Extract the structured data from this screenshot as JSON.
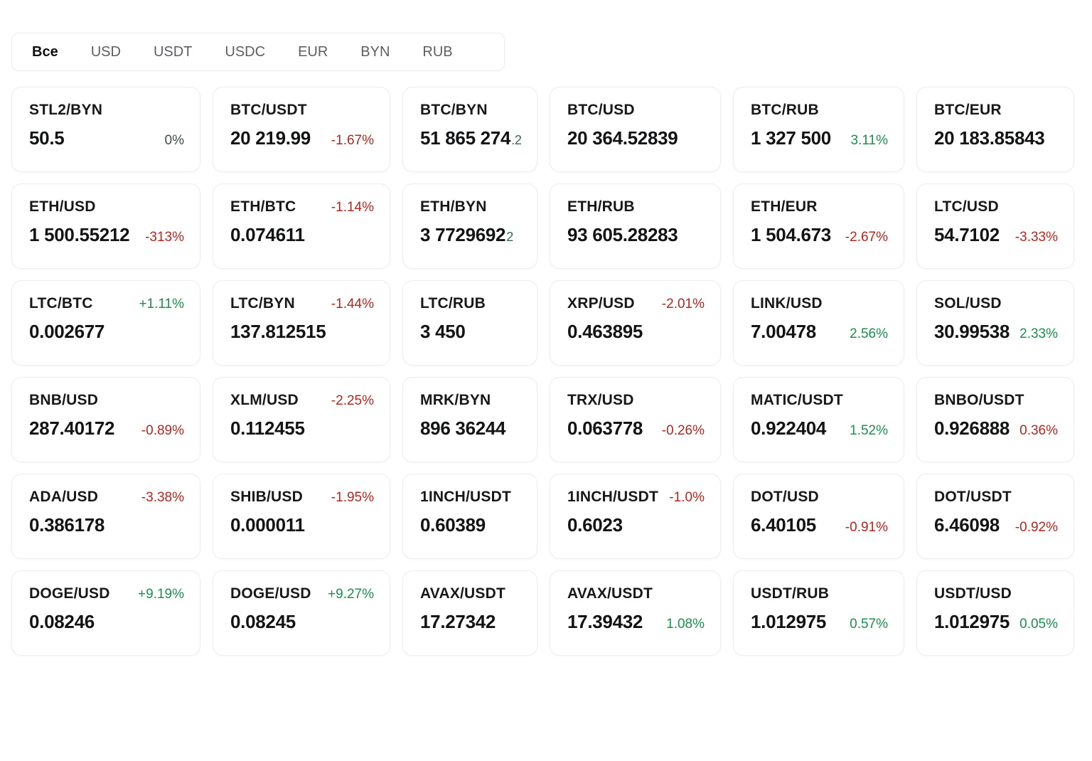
{
  "colors": {
    "positive": "#17914c",
    "negative": "#b3261e",
    "neutral": "#3d4f49",
    "price_suffix": "#2f6e55"
  },
  "tabs": [
    {
      "id": "all",
      "label": "Все",
      "active": true
    },
    {
      "id": "usd",
      "label": "USD",
      "active": false
    },
    {
      "id": "usdt",
      "label": "USDT",
      "active": false
    },
    {
      "id": "usdc",
      "label": "USDC",
      "active": false
    },
    {
      "id": "eur",
      "label": "EUR",
      "active": false
    },
    {
      "id": "byn",
      "label": "BYN",
      "active": false
    },
    {
      "id": "rub",
      "label": "RUB",
      "active": false
    }
  ],
  "cards": [
    {
      "pair": "STL2/BYN",
      "price": "50.5",
      "suffix": "",
      "change": "0%",
      "change_color": "neutral",
      "change_pos": "price"
    },
    {
      "pair": "BTC/USDT",
      "price": "20 219.99",
      "suffix": "",
      "change": "-1.67%",
      "change_color": "red",
      "change_pos": "price"
    },
    {
      "pair": "BTC/BYN",
      "price": "51 865 274",
      "suffix": ".2",
      "change": "",
      "change_color": "",
      "change_pos": "none"
    },
    {
      "pair": "BTC/USD",
      "price": "20 364.52839",
      "suffix": "",
      "change": "",
      "change_color": "",
      "change_pos": "none"
    },
    {
      "pair": "BTC/RUB",
      "price": "1 327 500",
      "suffix": "",
      "change": "3.11%",
      "change_color": "green",
      "change_pos": "price"
    },
    {
      "pair": "BTC/EUR",
      "price": "20 183.85843",
      "suffix": "",
      "change": "",
      "change_color": "",
      "change_pos": "none"
    },
    {
      "pair": "ETH/USD",
      "price": "1 500.55212",
      "suffix": "",
      "change": "-313%",
      "change_color": "red",
      "change_pos": "price"
    },
    {
      "pair": "ETH/BTC",
      "price": "0.074611",
      "suffix": "",
      "change": "-1.14%",
      "change_color": "red",
      "change_pos": "header"
    },
    {
      "pair": "ETH/BYN",
      "price": "3 7729692",
      "suffix": "2",
      "change": "",
      "change_color": "",
      "change_pos": "none"
    },
    {
      "pair": "ETH/RUB",
      "price": "93 605.28283",
      "suffix": "",
      "change": "",
      "change_color": "",
      "change_pos": "none"
    },
    {
      "pair": "ETH/EUR",
      "price": "1 504.673",
      "suffix": "",
      "change": "-2.67%",
      "change_color": "red",
      "change_pos": "price"
    },
    {
      "pair": "LTC/USD",
      "price": "54.7102",
      "suffix": "",
      "change": "-3.33%",
      "change_color": "red",
      "change_pos": "price"
    },
    {
      "pair": "LTC/BTC",
      "price": "0.002677",
      "suffix": "",
      "change": "+1.11%",
      "change_color": "green",
      "change_pos": "header"
    },
    {
      "pair": "LTC/BYN",
      "price": "137.812515",
      "suffix": "",
      "change": "-1.44%",
      "change_color": "red",
      "change_pos": "header"
    },
    {
      "pair": "LTC/RUB",
      "price": "3 450",
      "suffix": "",
      "change": "",
      "change_color": "",
      "change_pos": "none"
    },
    {
      "pair": "XRP/USD",
      "price": "0.463895",
      "suffix": "",
      "change": "-2.01%",
      "change_color": "red",
      "change_pos": "header"
    },
    {
      "pair": "LINK/USD",
      "price": "7.00478",
      "suffix": "",
      "change": "2.56%",
      "change_color": "green",
      "change_pos": "price"
    },
    {
      "pair": "SOL/USD",
      "price": "30.99538",
      "suffix": "",
      "change": "2.33%",
      "change_color": "green",
      "change_pos": "price"
    },
    {
      "pair": "BNB/USD",
      "price": "287.40172",
      "suffix": "",
      "change": "-0.89%",
      "change_color": "red",
      "change_pos": "price"
    },
    {
      "pair": "XLM/USD",
      "price": "0.112455",
      "suffix": "",
      "change": "-2.25%",
      "change_color": "red",
      "change_pos": "header"
    },
    {
      "pair": "MRK/BYN",
      "price": "896 36244",
      "suffix": "",
      "change": "",
      "change_color": "",
      "change_pos": "none"
    },
    {
      "pair": "TRX/USD",
      "price": "0.063778",
      "suffix": "",
      "change": "-0.26%",
      "change_color": "red",
      "change_pos": "price"
    },
    {
      "pair": "MATIC/USDT",
      "price": "0.922404",
      "suffix": "",
      "change": "1.52%",
      "change_color": "green",
      "change_pos": "price"
    },
    {
      "pair": "BNBO/USDT",
      "price": "0.926888",
      "suffix": "",
      "change": "0.36%",
      "change_color": "red",
      "change_pos": "price"
    },
    {
      "pair": "ADA/USD",
      "price": "0.386178",
      "suffix": "",
      "change": "-3.38%",
      "change_color": "red",
      "change_pos": "header"
    },
    {
      "pair": "SHIB/USD",
      "price": "0.000011",
      "suffix": "",
      "change": "-1.95%",
      "change_color": "red",
      "change_pos": "header"
    },
    {
      "pair": "1INCH/USDT",
      "price": "0.60389",
      "suffix": "",
      "change": "",
      "change_color": "",
      "change_pos": "none"
    },
    {
      "pair": "1INCH/USDT",
      "price": "0.6023",
      "suffix": "",
      "change": "-1.0%",
      "change_color": "red",
      "change_pos": "header"
    },
    {
      "pair": "DOT/USD",
      "price": "6.40105",
      "suffix": "",
      "change": "-0.91%",
      "change_color": "red",
      "change_pos": "price"
    },
    {
      "pair": "DOT/USDT",
      "price": "6.46098",
      "suffix": "",
      "change": "-0.92%",
      "change_color": "red",
      "change_pos": "price"
    },
    {
      "pair": "DOGE/USD",
      "price": "0.08246",
      "suffix": "",
      "change": "+9.19%",
      "change_color": "green",
      "change_pos": "header"
    },
    {
      "pair": "DOGE/USD",
      "price": "0.08245",
      "suffix": "",
      "change": "+9.27%",
      "change_color": "green",
      "change_pos": "header"
    },
    {
      "pair": "AVAX/USDT",
      "price": "17.27342",
      "suffix": "",
      "change": "",
      "change_color": "",
      "change_pos": "none"
    },
    {
      "pair": "AVAX/USDT",
      "price": "17.39432",
      "suffix": "",
      "change": "1.08%",
      "change_color": "green",
      "change_pos": "price"
    },
    {
      "pair": "USDT/RUB",
      "price": "1.012975",
      "suffix": "",
      "change": "0.57%",
      "change_color": "green",
      "change_pos": "price"
    },
    {
      "pair": "USDT/USD",
      "price": "1.012975",
      "suffix": "",
      "change": "0.05%",
      "change_color": "green",
      "change_pos": "price"
    }
  ]
}
